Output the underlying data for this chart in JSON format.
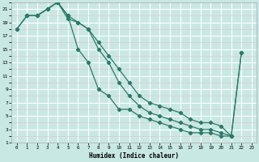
{
  "xlabel": "Humidex (Indice chaleur)",
  "xlim": [
    -0.5,
    23.5
  ],
  "ylim": [
    1,
    22
  ],
  "xticks": [
    0,
    1,
    2,
    3,
    4,
    5,
    6,
    7,
    8,
    9,
    10,
    11,
    12,
    13,
    14,
    15,
    16,
    17,
    18,
    19,
    20,
    21,
    22,
    23
  ],
  "yticks": [
    1,
    3,
    5,
    7,
    9,
    11,
    13,
    15,
    17,
    19,
    21
  ],
  "bg_color": "#c8e8e4",
  "grid_major_color": "#ffffff",
  "grid_minor_color": "#e8c8c8",
  "line_color": "#2a7a6a",
  "line1_x": [
    0,
    1,
    2,
    3,
    4,
    5,
    6,
    7,
    8,
    9,
    10,
    11,
    12,
    13,
    14,
    15,
    16,
    17,
    18,
    19,
    20,
    21
  ],
  "line1_y": [
    18,
    20,
    20,
    21,
    22,
    20,
    15,
    13,
    9,
    8,
    6,
    6,
    5,
    4.5,
    4,
    3.5,
    3,
    2.5,
    2.5,
    2.5,
    2,
    2
  ],
  "line2_x": [
    0,
    1,
    2,
    3,
    4,
    5,
    6,
    7,
    8,
    9,
    10,
    11,
    12,
    13,
    14,
    15,
    16,
    17,
    18,
    19,
    20,
    21,
    22
  ],
  "line2_y": [
    18,
    20,
    20,
    21,
    22,
    20,
    19,
    18,
    16,
    14,
    12,
    10,
    8,
    7,
    6.5,
    6,
    5.5,
    4.5,
    4,
    4,
    3.5,
    2,
    14.5
  ],
  "line3_x": [
    1,
    2,
    3,
    4,
    5,
    6,
    7,
    8,
    9,
    10,
    11,
    12,
    13,
    14,
    15,
    16,
    17,
    18,
    19,
    20,
    21,
    22
  ],
  "line3_y": [
    20,
    20,
    21,
    22,
    19.5,
    19,
    18,
    15,
    13,
    10,
    8,
    6.5,
    5.5,
    5,
    4.5,
    4,
    3.5,
    3,
    3,
    2.5,
    2,
    14.5
  ]
}
